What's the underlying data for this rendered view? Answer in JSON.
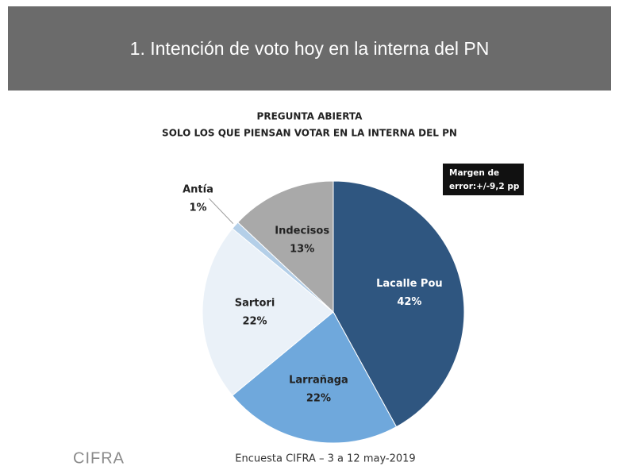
{
  "chart_data": {
    "type": "pie",
    "title": "1. Intención de voto hoy en la interna del PN",
    "subtitle": [
      "PREGUNTA ABIERTA",
      "SOLO LOS QUE  PIENSAN VOTAR EN LA INTERNA DEL PN"
    ],
    "categories": [
      "Lacalle Pou",
      "Larrañaga",
      "Sartori",
      "Antía",
      "Indecisos"
    ],
    "values": [
      42,
      22,
      22,
      1,
      13
    ],
    "value_labels": [
      "42%",
      "22%",
      "22%",
      "1%",
      "13%"
    ],
    "colors": [
      "#2f5680",
      "#6fa8dc",
      "#eaf1f8",
      "#b4cfe8",
      "#a9a9a9"
    ],
    "annotation": [
      "Margen de",
      "error:+/-9,2 pp"
    ],
    "footer": "Encuesta CIFRA – 3 a 12 may-2019",
    "logo": "CIFRA"
  }
}
